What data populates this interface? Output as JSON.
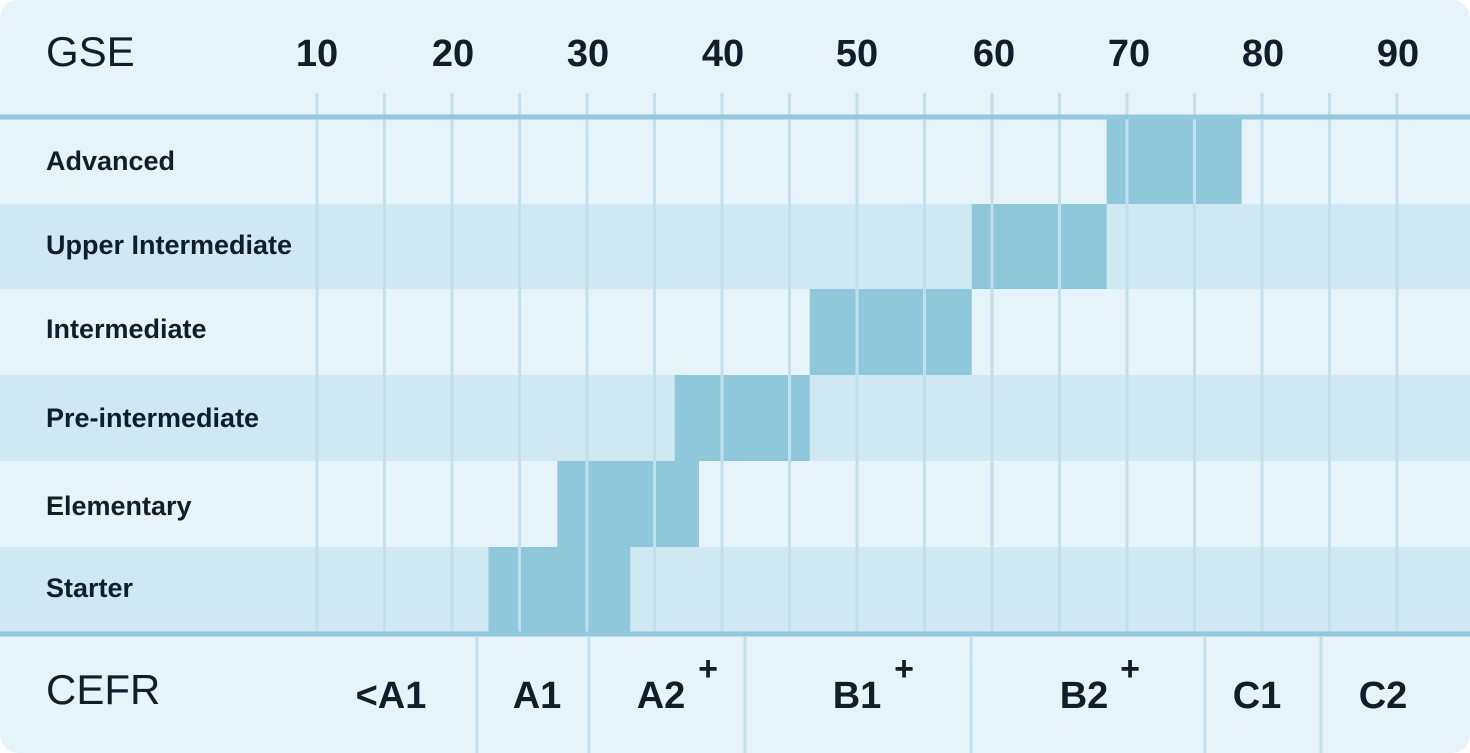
{
  "chart_data": {
    "type": "bar",
    "orientation": "horizontal-range",
    "title": "",
    "xlabel": "GSE",
    "secondary_axis_label": "CEFR",
    "x_ticks": [
      "10",
      "20",
      "30",
      "40",
      "50",
      "60",
      "70",
      "80",
      "90"
    ],
    "xlim": [
      10,
      90
    ],
    "grid": true,
    "categories": [
      "Advanced",
      "Upper Intermediate",
      "Intermediate",
      "Pre-intermediate",
      "Elementary",
      "Starter"
    ],
    "ranges": [
      {
        "level": "Advanced",
        "start": 68.5,
        "end": 78.5
      },
      {
        "level": "Upper Intermediate",
        "start": 58.5,
        "end": 68.5
      },
      {
        "level": "Intermediate",
        "start": 46.5,
        "end": 58.5
      },
      {
        "level": "Pre-intermediate",
        "start": 36.5,
        "end": 46.5
      },
      {
        "level": "Elementary",
        "start": 27.8,
        "end": 38.3
      },
      {
        "level": "Starter",
        "start": 22.7,
        "end": 33.2
      }
    ],
    "cefr_bands": [
      {
        "label": "<A1",
        "plus": "",
        "start": 10,
        "end": 22
      },
      {
        "label": "A1",
        "plus": "",
        "start": 22,
        "end": 30
      },
      {
        "label": "A2",
        "plus": "+",
        "start": 30,
        "end": 42
      },
      {
        "label": "B1",
        "plus": "+",
        "start": 42,
        "end": 59
      },
      {
        "label": "B2",
        "plus": "+",
        "start": 59,
        "end": 76
      },
      {
        "label": "C1",
        "plus": "",
        "start": 76,
        "end": 85
      },
      {
        "label": "C2",
        "plus": "",
        "start": 85,
        "end": 90
      }
    ],
    "colors": {
      "background_light": "#e6f4f9",
      "background_stripe": "#d0e8f1",
      "bar": "#8fc8da",
      "rule": "#92c9dc",
      "gridline": "#c2e0eb",
      "text": "#0f1e2b"
    }
  }
}
